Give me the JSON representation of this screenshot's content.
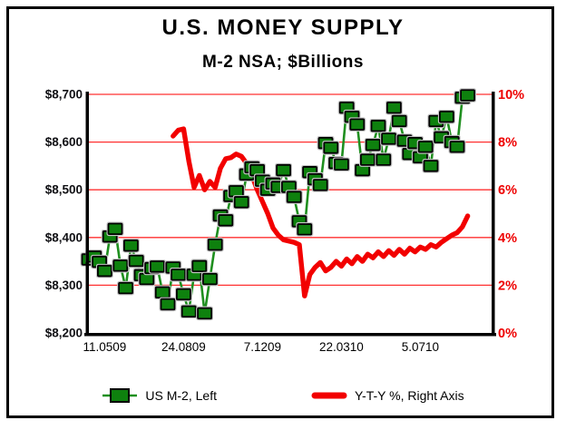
{
  "header": {
    "title": "U.S. MONEY SUPPLY",
    "subtitle": "M-2 NSA; $Billions"
  },
  "legend": {
    "position": "bottom",
    "items": [
      {
        "label": "US M-2, Left",
        "color": "#0e810e",
        "style": "square-marker"
      },
      {
        "label": "Y-T-Y %, Right Axis",
        "color": "#f20000",
        "style": "thick-line"
      }
    ]
  },
  "chart_data": {
    "type": "line",
    "title": "U.S. MONEY SUPPLY",
    "subtitle": "M-2 NSA; $Billions",
    "x_axis": {
      "tick_labels": [
        "11.0509",
        "24.0809",
        "7.1209",
        "22.0310",
        "5.0710"
      ],
      "tick_weeks": [
        3,
        18,
        33,
        48,
        63
      ]
    },
    "left_axis": {
      "tick_labels": [
        "$8,700",
        "$8,600",
        "$8,500",
        "$8,400",
        "$8,300",
        "$8,200"
      ],
      "tick_values": [
        8700,
        8600,
        8500,
        8400,
        8300,
        8200
      ],
      "min": 8200,
      "max": 8700,
      "color": "#101014"
    },
    "right_axis": {
      "tick_labels": [
        "10%",
        "8%",
        "6%",
        "4%",
        "2%",
        "0%"
      ],
      "tick_values": [
        10,
        8,
        6,
        4,
        2,
        0
      ],
      "min": 0,
      "max": 10,
      "color": "#ee0000"
    },
    "grid": {
      "show": true,
      "color": "#ff3030"
    },
    "series": [
      {
        "name": "US M-2, Left",
        "axis": "left",
        "marker": "square",
        "color": "#0e810e",
        "line_color": "#1f8f1f",
        "values": [
          8354,
          8360,
          8349,
          8330,
          8402,
          8418,
          8341,
          8294,
          8383,
          8351,
          8321,
          8313,
          8336,
          8339,
          8285,
          8260,
          8337,
          8322,
          8281,
          8245,
          8322,
          8340,
          8241,
          8313,
          8385,
          8446,
          8436,
          8487,
          8497,
          8474,
          8532,
          8547,
          8541,
          8519,
          8500,
          8513,
          8506,
          8541,
          8506,
          8485,
          8434,
          8417,
          8537,
          8522,
          8510,
          8598,
          8588,
          8556,
          8553,
          8672,
          8653,
          8637,
          8541,
          8563,
          8594,
          8634,
          8563,
          8607,
          8672,
          8644,
          8603,
          8575,
          8598,
          8568,
          8590,
          8550,
          8644,
          8610,
          8653,
          8600,
          8590,
          8693,
          8698
        ]
      },
      {
        "name": "Y-T-Y %, Right Axis",
        "axis": "right",
        "marker": "none",
        "color": "#f20000",
        "values": [
          null,
          null,
          null,
          null,
          null,
          null,
          null,
          null,
          null,
          null,
          null,
          null,
          null,
          null,
          null,
          null,
          8.25,
          8.5,
          8.55,
          7.2,
          6.1,
          6.6,
          6.0,
          6.35,
          6.1,
          6.9,
          7.3,
          7.35,
          7.5,
          7.4,
          7.1,
          6.6,
          6.0,
          5.5,
          5.0,
          4.4,
          4.1,
          3.9,
          3.85,
          3.8,
          3.7,
          1.55,
          2.45,
          2.75,
          2.95,
          2.6,
          2.75,
          3.0,
          2.8,
          3.1,
          2.9,
          3.2,
          3.0,
          3.3,
          3.15,
          3.4,
          3.2,
          3.45,
          3.25,
          3.5,
          3.3,
          3.55,
          3.4,
          3.6,
          3.5,
          3.7,
          3.6,
          3.8,
          3.95,
          4.1,
          4.2,
          4.45,
          4.9
        ]
      }
    ]
  }
}
